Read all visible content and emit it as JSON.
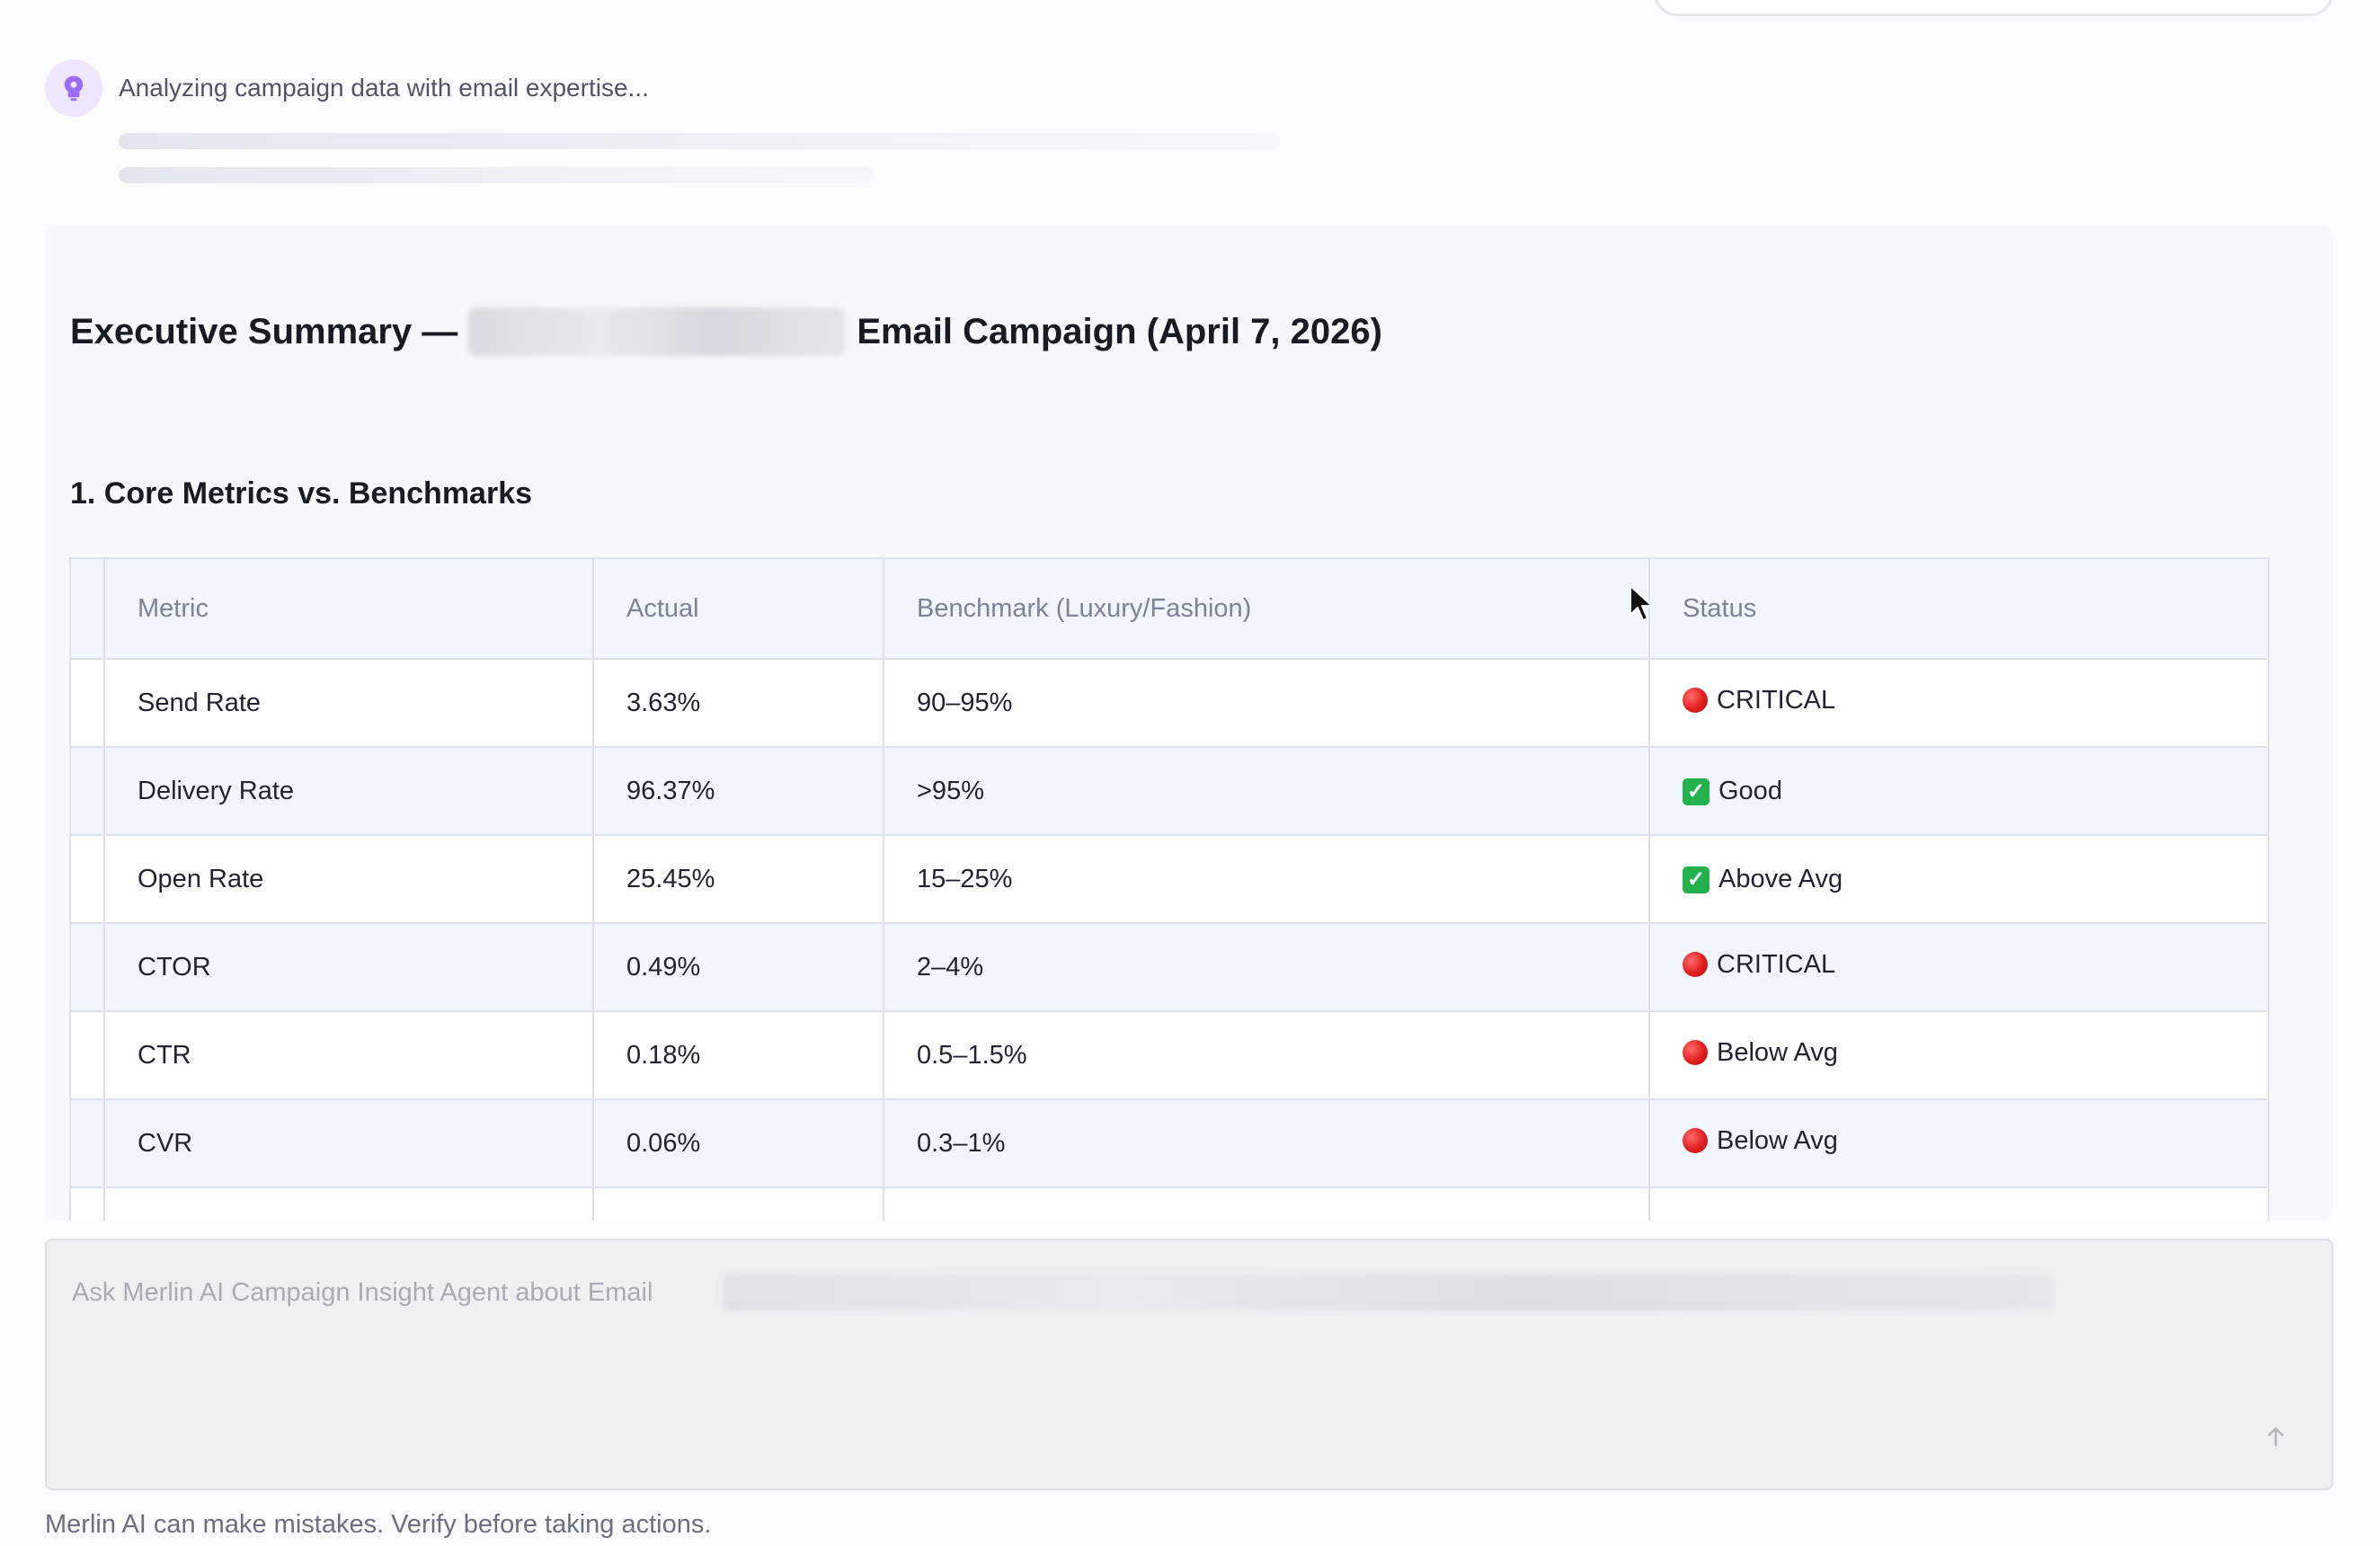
{
  "status": {
    "text": "Analyzing campaign data with email expertise...",
    "icon": "brain-icon",
    "icon_color": "#8b5cf6"
  },
  "message": {
    "title_prefix": "Executive Summary —",
    "title_suffix": "Email Campaign (April 7, 2026)",
    "section_heading": "1. Core Metrics vs. Benchmarks",
    "table": {
      "headers": [
        "Metric",
        "Actual",
        "Benchmark (Luxury/Fashion)",
        "Status"
      ],
      "rows": [
        {
          "metric": "Send Rate",
          "actual": "3.63%",
          "benchmark": "90–95%",
          "status": "CRITICAL",
          "status_type": "critical"
        },
        {
          "metric": "Delivery Rate",
          "actual": "96.37%",
          "benchmark": ">95%",
          "status": "Good",
          "status_type": "good"
        },
        {
          "metric": "Open Rate",
          "actual": "25.45%",
          "benchmark": "15–25%",
          "status": "Above Avg",
          "status_type": "good"
        },
        {
          "metric": "CTOR",
          "actual": "0.49%",
          "benchmark": "2–4%",
          "status": "CRITICAL",
          "status_type": "critical"
        },
        {
          "metric": "CTR",
          "actual": "0.18%",
          "benchmark": "0.5–1.5%",
          "status": "Below Avg",
          "status_type": "critical"
        },
        {
          "metric": "CVR",
          "actual": "0.06%",
          "benchmark": "0.3–1%",
          "status": "Below Avg",
          "status_type": "critical"
        }
      ]
    }
  },
  "chat": {
    "placeholder": "Ask Merlin AI Campaign Insight Agent about Email",
    "send_icon": "arrow-up-icon",
    "disclaimer": "Merlin AI can make mistakes. Verify before taking actions."
  },
  "colors": {
    "critical": "#e01e1e",
    "good": "#22b14c",
    "header_bg": "#f1f5fd"
  }
}
